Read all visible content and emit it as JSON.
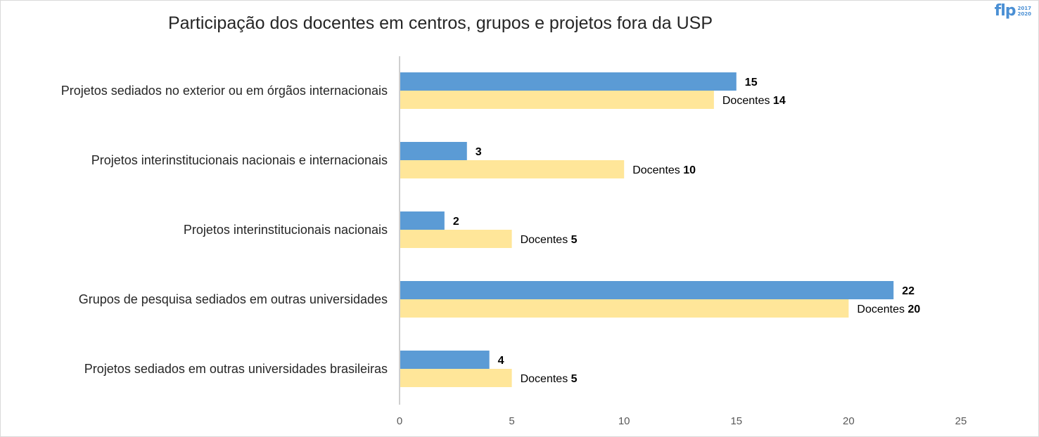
{
  "chart_data": {
    "type": "bar",
    "orientation": "horizontal",
    "title": "Participação dos docentes em centros, grupos e projetos fora da USP",
    "categories": [
      "Projetos sediados no exterior ou em órgãos internacionais",
      "Projetos interinstitucionais nacionais e internacionais",
      "Projetos interinstitucionais nacionais",
      "Grupos de pesquisa sediados em outras universidades",
      "Projetos sediados em outras universidades brasileiras"
    ],
    "series": [
      {
        "values": [
          15,
          3,
          2,
          22,
          4
        ],
        "color": "#5b9bd5",
        "label_prefix": ""
      },
      {
        "values": [
          14,
          10,
          5,
          20,
          5
        ],
        "color": "#ffe699",
        "label_prefix": "Docentes"
      }
    ],
    "xlim": [
      0,
      25
    ],
    "xticks": [
      0,
      5,
      10,
      15,
      20,
      25
    ],
    "grid": false,
    "legend": "none"
  },
  "logo": {
    "mark": "flp",
    "year_top": "2017",
    "year_bottom": "2020"
  }
}
